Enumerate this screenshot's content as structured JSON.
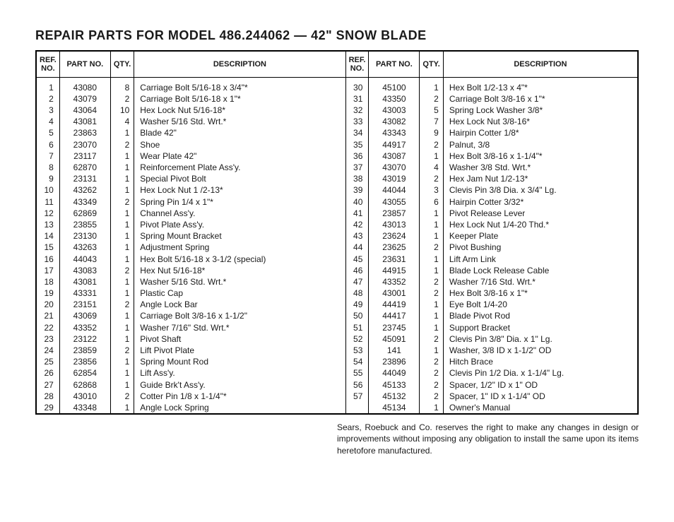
{
  "title": "REPAIR PARTS FOR MODEL 486.244062 — 42\" SNOW BLADE",
  "headers": {
    "ref": "REF.\nNO.",
    "part": "PART NO.",
    "qty": "QTY.",
    "desc": "DESCRIPTION"
  },
  "left": [
    {
      "ref": "1",
      "part": "43080",
      "qty": "8",
      "desc": "Carriage Bolt 5/16-18 x 3/4\"*"
    },
    {
      "ref": "2",
      "part": "43079",
      "qty": "2",
      "desc": "Carriage Bolt 5/16-18 x 1\"*"
    },
    {
      "ref": "3",
      "part": "43064",
      "qty": "10",
      "desc": "Hex Lock Nut 5/16-18*"
    },
    {
      "ref": "4",
      "part": "43081",
      "qty": "4",
      "desc": "Washer 5/16 Std. Wrt.*"
    },
    {
      "ref": "5",
      "part": "23863",
      "qty": "1",
      "desc": "Blade 42\""
    },
    {
      "ref": "6",
      "part": "23070",
      "qty": "2",
      "desc": "Shoe"
    },
    {
      "ref": "7",
      "part": "23117",
      "qty": "1",
      "desc": "Wear Plate 42\""
    },
    {
      "ref": "8",
      "part": "62870",
      "qty": "1",
      "desc": "Reinforcement Plate Ass'y."
    },
    {
      "ref": "9",
      "part": "23131",
      "qty": "1",
      "desc": "Special Pivot Bolt"
    },
    {
      "ref": "10",
      "part": "43262",
      "qty": "1",
      "desc": "Hex Lock Nut 1 /2-13*"
    },
    {
      "ref": "11",
      "part": "43349",
      "qty": "2",
      "desc": "Spring Pin 1/4 x 1\"*"
    },
    {
      "ref": "12",
      "part": "62869",
      "qty": "1",
      "desc": "Channel Ass'y."
    },
    {
      "ref": "13",
      "part": "23855",
      "qty": "1",
      "desc": "Pivot Plate Ass'y."
    },
    {
      "ref": "14",
      "part": "23130",
      "qty": "1",
      "desc": "Spring Mount Bracket"
    },
    {
      "ref": "15",
      "part": "43263",
      "qty": "1",
      "desc": "Adjustment Spring"
    },
    {
      "ref": "16",
      "part": "44043",
      "qty": "1",
      "desc": "Hex Bolt 5/16-18 x 3-1/2 (special)"
    },
    {
      "ref": "17",
      "part": "43083",
      "qty": "2",
      "desc": "Hex Nut 5/16-18*"
    },
    {
      "ref": "18",
      "part": "43081",
      "qty": "1",
      "desc": "Washer 5/16 Std. Wrt.*"
    },
    {
      "ref": "19",
      "part": "43331",
      "qty": "1",
      "desc": "Plastic Cap"
    },
    {
      "ref": "20",
      "part": "23151",
      "qty": "2",
      "desc": "Angle Lock Bar"
    },
    {
      "ref": "21",
      "part": "43069",
      "qty": "1",
      "desc": "Carriage Bolt 3/8-16 x 1-1/2\""
    },
    {
      "ref": "22",
      "part": "43352",
      "qty": "1",
      "desc": "Washer 7/16\" Std. Wrt.*"
    },
    {
      "ref": "23",
      "part": "23122",
      "qty": "1",
      "desc": "Pivot Shaft"
    },
    {
      "ref": "24",
      "part": "23859",
      "qty": "2",
      "desc": "Lift Pivot Plate"
    },
    {
      "ref": "25",
      "part": "23856",
      "qty": "1",
      "desc": "Spring Mount Rod"
    },
    {
      "ref": "26",
      "part": "62854",
      "qty": "1",
      "desc": "Lift Ass'y."
    },
    {
      "ref": "27",
      "part": "62868",
      "qty": "1",
      "desc": "Guide Brk't Ass'y."
    },
    {
      "ref": "28",
      "part": "43010",
      "qty": "2",
      "desc": "Cotter Pin 1/8 x 1-1/4\"*"
    },
    {
      "ref": "29",
      "part": "43348",
      "qty": "1",
      "desc": "Angle Lock Spring"
    }
  ],
  "right": [
    {
      "ref": "30",
      "part": "45100",
      "qty": "1",
      "desc": "Hex Bolt 1/2-13 x 4\"*"
    },
    {
      "ref": "31",
      "part": "43350",
      "qty": "2",
      "desc": "Carriage Bolt 3/8-16 x 1\"*"
    },
    {
      "ref": "32",
      "part": "43003",
      "qty": "5",
      "desc": "Spring Lock Washer 3/8*"
    },
    {
      "ref": "33",
      "part": "43082",
      "qty": "7",
      "desc": "Hex Lock Nut 3/8-16*"
    },
    {
      "ref": "34",
      "part": "43343",
      "qty": "9",
      "desc": "Hairpin Cotter 1/8*"
    },
    {
      "ref": "35",
      "part": "44917",
      "qty": "2",
      "desc": "Palnut, 3/8"
    },
    {
      "ref": "36",
      "part": "43087",
      "qty": "1",
      "desc": "Hex Bolt 3/8-16 x 1-1/4\"*"
    },
    {
      "ref": "37",
      "part": "43070",
      "qty": "4",
      "desc": "Washer 3/8 Std. Wrt.*"
    },
    {
      "ref": "38",
      "part": "43019",
      "qty": "2",
      "desc": "Hex Jam Nut 1/2-13*"
    },
    {
      "ref": "39",
      "part": "44044",
      "qty": "3",
      "desc": "Clevis Pin 3/8 Dia. x 3/4\" Lg."
    },
    {
      "ref": "40",
      "part": "43055",
      "qty": "6",
      "desc": "Hairpin Cotter 3/32*"
    },
    {
      "ref": "41",
      "part": "23857",
      "qty": "1",
      "desc": "Pivot Release Lever"
    },
    {
      "ref": "42",
      "part": "43013",
      "qty": "1",
      "desc": "Hex Lock Nut 1/4-20 Thd.*"
    },
    {
      "ref": "43",
      "part": "23624",
      "qty": "1",
      "desc": "Keeper Plate"
    },
    {
      "ref": "44",
      "part": "23625",
      "qty": "2",
      "desc": "Pivot Bushing"
    },
    {
      "ref": "45",
      "part": "23631",
      "qty": "1",
      "desc": "Lift Arm Link"
    },
    {
      "ref": "46",
      "part": "44915",
      "qty": "1",
      "desc": "Blade Lock Release Cable"
    },
    {
      "ref": "47",
      "part": "43352",
      "qty": "2",
      "desc": "Washer 7/16 Std. Wrt.*"
    },
    {
      "ref": "48",
      "part": "43001",
      "qty": "2",
      "desc": "Hex Bolt 3/8-16 x 1\"*"
    },
    {
      "ref": "49",
      "part": "44419",
      "qty": "1",
      "desc": "Eye Bolt 1/4-20"
    },
    {
      "ref": "50",
      "part": "44417",
      "qty": "1",
      "desc": "Blade Pivot Rod"
    },
    {
      "ref": "51",
      "part": "23745",
      "qty": "1",
      "desc": "Support Bracket"
    },
    {
      "ref": "52",
      "part": "45091",
      "qty": "2",
      "desc": "Clevis Pin 3/8\" Dia. x 1\" Lg."
    },
    {
      "ref": "53",
      "part": "141",
      "qty": "1",
      "desc": "Washer, 3/8 ID x 1-1/2\" OD"
    },
    {
      "ref": "54",
      "part": "23896",
      "qty": "2",
      "desc": "Hitch Brace"
    },
    {
      "ref": "55",
      "part": "44049",
      "qty": "2",
      "desc": "Clevis Pin 1/2 Dia. x 1-1/4\" Lg."
    },
    {
      "ref": "56",
      "part": "45133",
      "qty": "2",
      "desc": "Spacer, 1/2\" ID x 1\" OD"
    },
    {
      "ref": "57",
      "part": "45132",
      "qty": "2",
      "desc": "Spacer, 1\" ID x 1-1/4\" OD"
    },
    {
      "ref": "",
      "part": "45134",
      "qty": "1",
      "desc": "Owner's Manual"
    }
  ],
  "footer": "Sears, Roebuck and Co. reserves the right to make any changes in design or improvements without imposing any obligation to install the same upon its items heretofore manufactured."
}
